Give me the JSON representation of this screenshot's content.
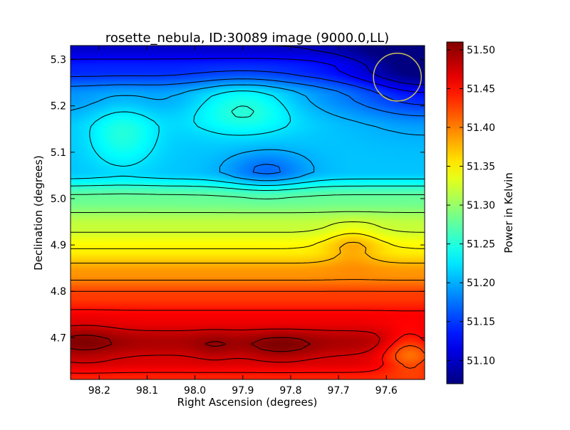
{
  "chart_data": {
    "type": "heatmap",
    "title": "rosette_nebula, ID:30089 image (9000.0,LL)",
    "xlabel": "Right Ascension (degrees)",
    "ylabel": "Declination (degrees)",
    "xlim": [
      98.26,
      97.52
    ],
    "ylim": [
      4.61,
      5.33
    ],
    "x_ticks": [
      98.2,
      98.1,
      98.0,
      97.9,
      97.8,
      97.7,
      97.6
    ],
    "x_tick_labels": [
      "98.2",
      "98.1",
      "98.0",
      "97.9",
      "97.8",
      "97.7",
      "97.6"
    ],
    "y_ticks": [
      4.7,
      4.8,
      4.9,
      5.0,
      5.1,
      5.2,
      5.3
    ],
    "y_tick_labels": [
      "4.7",
      "4.8",
      "4.9",
      "5.0",
      "5.1",
      "5.2",
      "5.3"
    ],
    "colorbar": {
      "label": "Power in Kelvin",
      "vmin": 51.07,
      "vmax": 51.51,
      "colormap": "jet",
      "ticks": [
        51.1,
        51.15,
        51.2,
        51.25,
        51.3,
        51.35,
        51.4,
        51.45,
        51.5
      ],
      "tick_labels": [
        "51.10",
        "51.15",
        "51.20",
        "51.25",
        "51.30",
        "51.35",
        "51.40",
        "51.45",
        "51.50"
      ]
    },
    "contour_color": "#000000",
    "beam_marker": {
      "ra": 97.577,
      "dec": 5.262,
      "radius_deg": 0.05,
      "color": "#c8c05a"
    },
    "field_rows": [
      {
        "dec": 5.33,
        "power": 51.1
      },
      {
        "dec": 5.28,
        "power": 51.14
      },
      {
        "dec": 5.22,
        "power": 51.19
      },
      {
        "dec": 5.15,
        "power": 51.21
      },
      {
        "dec": 5.06,
        "power": 51.21
      },
      {
        "dec": 5.0,
        "power": 51.28
      },
      {
        "dec": 4.94,
        "power": 51.32
      },
      {
        "dec": 4.89,
        "power": 51.35
      },
      {
        "dec": 4.84,
        "power": 51.39
      },
      {
        "dec": 4.79,
        "power": 51.43
      },
      {
        "dec": 4.74,
        "power": 51.46
      },
      {
        "dec": 4.69,
        "power": 51.49
      },
      {
        "dec": 4.65,
        "power": 51.47
      },
      {
        "dec": 4.61,
        "power": 51.44
      }
    ],
    "features": [
      {
        "ra": 97.52,
        "dec": 5.28,
        "power": 51.06,
        "sigma_ra": 0.1,
        "sigma_dec": 0.07
      },
      {
        "ra": 97.9,
        "dec": 5.2,
        "power": 51.25,
        "sigma_ra": 0.08,
        "sigma_dec": 0.04
      },
      {
        "ra": 97.85,
        "dec": 5.06,
        "power": 51.17,
        "sigma_ra": 0.06,
        "sigma_dec": 0.03
      },
      {
        "ra": 98.15,
        "dec": 5.14,
        "power": 51.25,
        "sigma_ra": 0.05,
        "sigma_dec": 0.05
      },
      {
        "ra": 97.67,
        "dec": 4.9,
        "power": 51.38,
        "sigma_ra": 0.04,
        "sigma_dec": 0.03
      },
      {
        "ra": 98.23,
        "dec": 4.69,
        "power": 51.51,
        "sigma_ra": 0.05,
        "sigma_dec": 0.03
      },
      {
        "ra": 97.82,
        "dec": 4.68,
        "power": 51.51,
        "sigma_ra": 0.05,
        "sigma_dec": 0.02
      },
      {
        "ra": 97.96,
        "dec": 4.68,
        "power": 51.5,
        "sigma_ra": 0.03,
        "sigma_dec": 0.02
      },
      {
        "ra": 97.55,
        "dec": 4.67,
        "power": 51.41,
        "sigma_ra": 0.04,
        "sigma_dec": 0.03
      }
    ]
  }
}
